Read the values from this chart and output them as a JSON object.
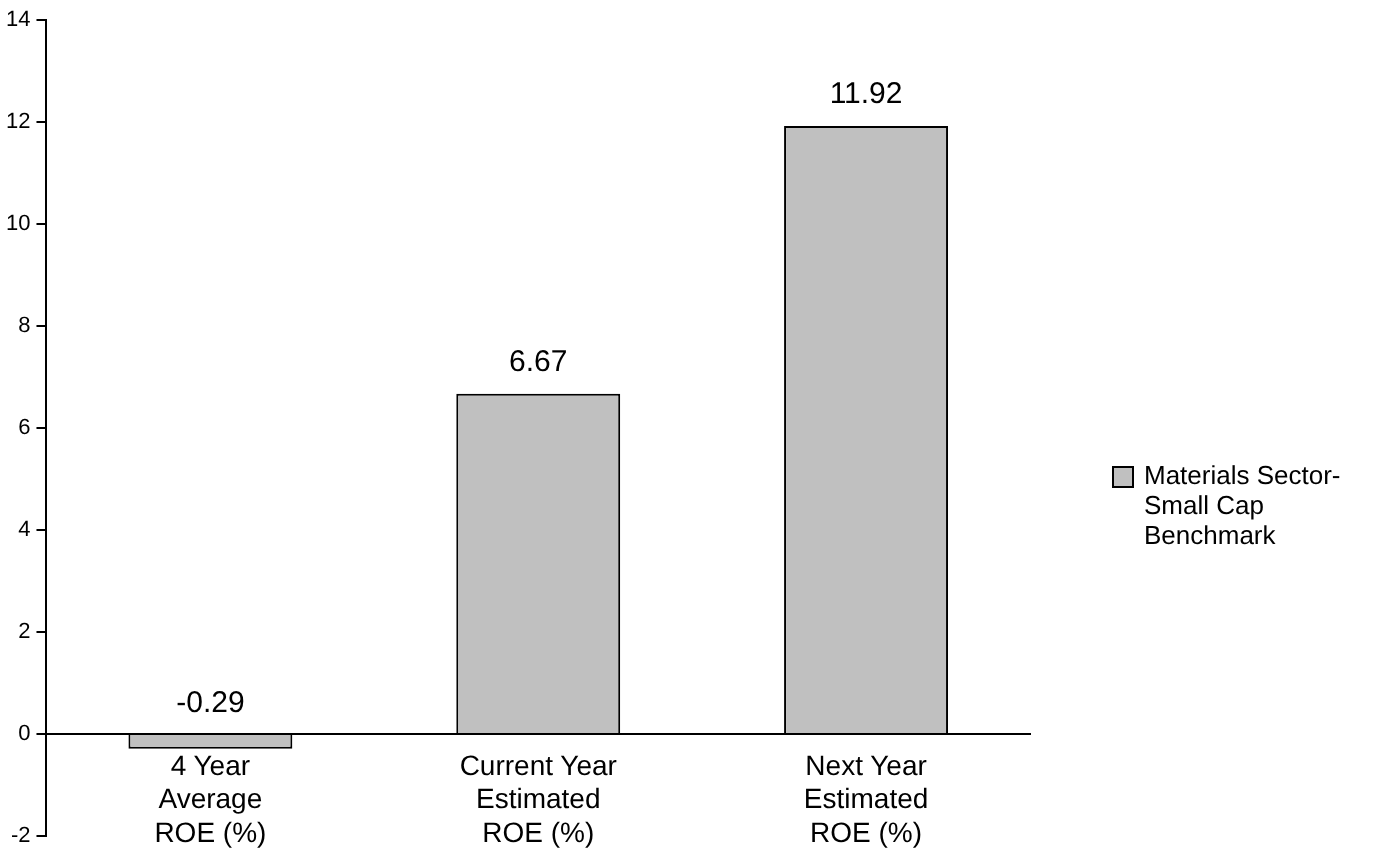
{
  "chart_data": {
    "type": "bar",
    "categories": [
      "4 Year\nAverage\nROE (%)",
      "Current Year\nEstimated\nROE (%)",
      "Next Year\nEstimated\nROE (%)"
    ],
    "series": [
      {
        "name": "Materials Sector-Small Cap Benchmark",
        "color": "#c0c0c0",
        "values": [
          -0.29,
          6.67,
          11.92
        ]
      }
    ],
    "ylim": [
      -2,
      14
    ],
    "yticks": [
      -2,
      0,
      2,
      4,
      6,
      8,
      10,
      12,
      14
    ],
    "grid": false,
    "legend": "right",
    "data_labels": true
  }
}
